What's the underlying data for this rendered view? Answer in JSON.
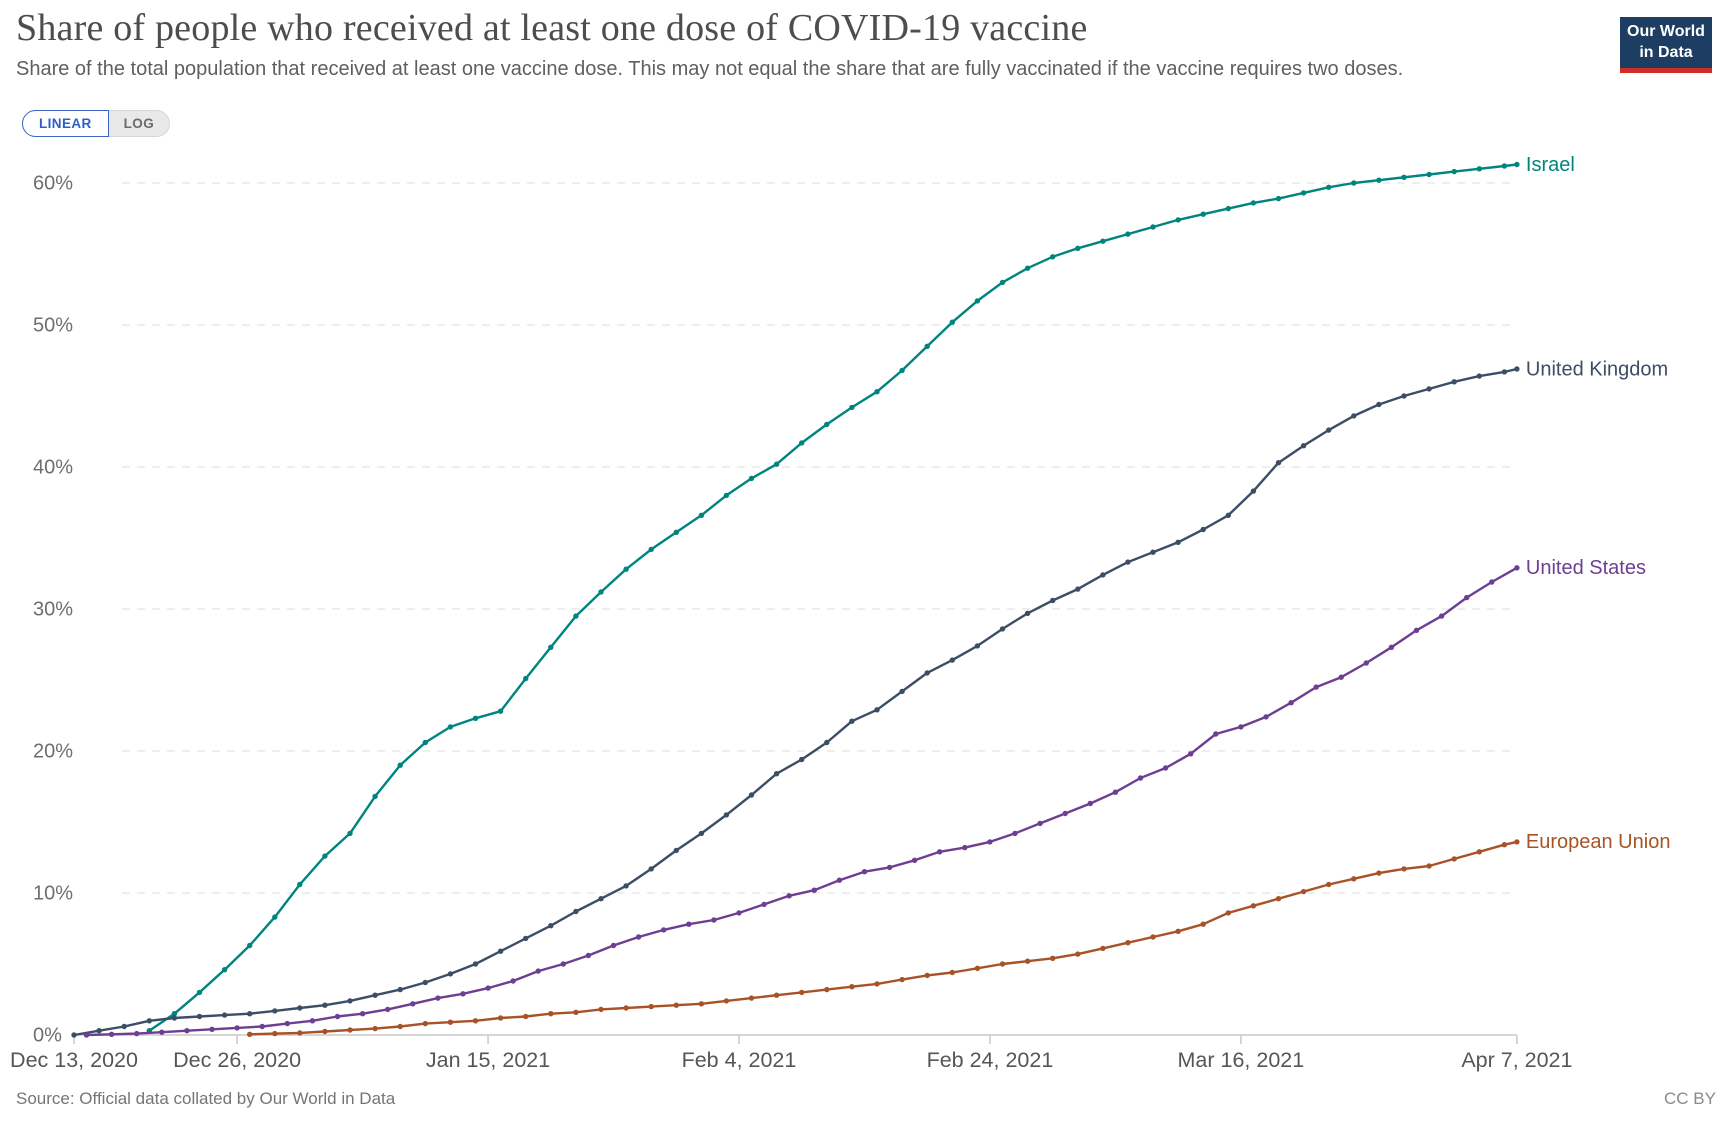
{
  "header": {
    "title": "Share of people who received at least one dose of COVID-19 vaccine",
    "subtitle": "Share of the total population that received at least one vaccine dose. This may not equal the share that are fully vaccinated if the vaccine requires two doses.",
    "logo": {
      "line1": "Our World",
      "line2": "in Data",
      "bg_color": "#1d3d63",
      "bar_color": "#ce2e27"
    }
  },
  "controls": {
    "linear_label": "LINEAR",
    "log_label": "LOG",
    "active": "LINEAR",
    "accent_color": "#2d5fc8"
  },
  "footer": {
    "source": "Source: Official data collated by Our World in Data",
    "license": "CC BY"
  },
  "chart_data": {
    "type": "line",
    "title": "Share of people who received at least one dose of COVID-19 vaccine",
    "xlabel": "",
    "ylabel": "",
    "x_unit": "days since Dec 13, 2020",
    "xlim": [
      0,
      115
    ],
    "ylim": [
      0,
      63
    ],
    "grid": "horizontal-dashed",
    "legend_position": "end-of-line-labels",
    "x_ticks": [
      {
        "label": "Dec 13, 2020",
        "day": 0
      },
      {
        "label": "Dec 26, 2020",
        "day": 13
      },
      {
        "label": "Jan 15, 2021",
        "day": 33
      },
      {
        "label": "Feb 4, 2021",
        "day": 53
      },
      {
        "label": "Feb 24, 2021",
        "day": 73
      },
      {
        "label": "Mar 16, 2021",
        "day": 93
      },
      {
        "label": "Apr 7, 2021",
        "day": 115
      }
    ],
    "y_ticks": [
      {
        "label": "0%",
        "value": 0
      },
      {
        "label": "10%",
        "value": 10
      },
      {
        "label": "20%",
        "value": 20
      },
      {
        "label": "30%",
        "value": 30
      },
      {
        "label": "40%",
        "value": 40
      },
      {
        "label": "50%",
        "value": 50
      },
      {
        "label": "60%",
        "value": 60
      }
    ],
    "series": [
      {
        "name": "Israel",
        "color": "#00847e",
        "points": [
          [
            6,
            0.3
          ],
          [
            8,
            1.5
          ],
          [
            10,
            3.0
          ],
          [
            12,
            4.6
          ],
          [
            14,
            6.3
          ],
          [
            16,
            8.3
          ],
          [
            18,
            10.6
          ],
          [
            20,
            12.6
          ],
          [
            22,
            14.2
          ],
          [
            24,
            16.8
          ],
          [
            26,
            19.0
          ],
          [
            28,
            20.6
          ],
          [
            30,
            21.7
          ],
          [
            32,
            22.3
          ],
          [
            34,
            22.8
          ],
          [
            36,
            25.1
          ],
          [
            38,
            27.3
          ],
          [
            40,
            29.5
          ],
          [
            42,
            31.2
          ],
          [
            44,
            32.8
          ],
          [
            46,
            34.2
          ],
          [
            48,
            35.4
          ],
          [
            50,
            36.6
          ],
          [
            52,
            38.0
          ],
          [
            54,
            39.2
          ],
          [
            56,
            40.2
          ],
          [
            58,
            41.7
          ],
          [
            60,
            43.0
          ],
          [
            62,
            44.2
          ],
          [
            64,
            45.3
          ],
          [
            66,
            46.8
          ],
          [
            68,
            48.5
          ],
          [
            70,
            50.2
          ],
          [
            72,
            51.7
          ],
          [
            74,
            53.0
          ],
          [
            76,
            54.0
          ],
          [
            78,
            54.8
          ],
          [
            80,
            55.4
          ],
          [
            82,
            55.9
          ],
          [
            84,
            56.4
          ],
          [
            86,
            56.9
          ],
          [
            88,
            57.4
          ],
          [
            90,
            57.8
          ],
          [
            92,
            58.2
          ],
          [
            94,
            58.6
          ],
          [
            96,
            58.9
          ],
          [
            98,
            59.3
          ],
          [
            100,
            59.7
          ],
          [
            102,
            60.0
          ],
          [
            104,
            60.2
          ],
          [
            106,
            60.4
          ],
          [
            108,
            60.6
          ],
          [
            110,
            60.8
          ],
          [
            112,
            61.0
          ],
          [
            114,
            61.2
          ],
          [
            115,
            61.3
          ]
        ]
      },
      {
        "name": "United Kingdom",
        "color": "#3c4e66",
        "points": [
          [
            0,
            0.0
          ],
          [
            2,
            0.3
          ],
          [
            4,
            0.6
          ],
          [
            6,
            1.0
          ],
          [
            8,
            1.2
          ],
          [
            10,
            1.3
          ],
          [
            12,
            1.4
          ],
          [
            14,
            1.5
          ],
          [
            16,
            1.7
          ],
          [
            18,
            1.9
          ],
          [
            20,
            2.1
          ],
          [
            22,
            2.4
          ],
          [
            24,
            2.8
          ],
          [
            26,
            3.2
          ],
          [
            28,
            3.7
          ],
          [
            30,
            4.3
          ],
          [
            32,
            5.0
          ],
          [
            34,
            5.9
          ],
          [
            36,
            6.8
          ],
          [
            38,
            7.7
          ],
          [
            40,
            8.7
          ],
          [
            42,
            9.6
          ],
          [
            44,
            10.5
          ],
          [
            46,
            11.7
          ],
          [
            48,
            13.0
          ],
          [
            50,
            14.2
          ],
          [
            52,
            15.5
          ],
          [
            54,
            16.9
          ],
          [
            56,
            18.4
          ],
          [
            58,
            19.4
          ],
          [
            60,
            20.6
          ],
          [
            62,
            22.1
          ],
          [
            64,
            22.9
          ],
          [
            66,
            24.2
          ],
          [
            68,
            25.5
          ],
          [
            70,
            26.4
          ],
          [
            72,
            27.4
          ],
          [
            74,
            28.6
          ],
          [
            76,
            29.7
          ],
          [
            78,
            30.6
          ],
          [
            80,
            31.4
          ],
          [
            82,
            32.4
          ],
          [
            84,
            33.3
          ],
          [
            86,
            34.0
          ],
          [
            88,
            34.7
          ],
          [
            90,
            35.6
          ],
          [
            92,
            36.6
          ],
          [
            94,
            38.3
          ],
          [
            96,
            40.3
          ],
          [
            98,
            41.5
          ],
          [
            100,
            42.6
          ],
          [
            102,
            43.6
          ],
          [
            104,
            44.4
          ],
          [
            106,
            45.0
          ],
          [
            108,
            45.5
          ],
          [
            110,
            46.0
          ],
          [
            112,
            46.4
          ],
          [
            114,
            46.7
          ],
          [
            115,
            46.9
          ]
        ]
      },
      {
        "name": "United States",
        "color": "#6d3e91",
        "points": [
          [
            1,
            0.0
          ],
          [
            3,
            0.05
          ],
          [
            5,
            0.1
          ],
          [
            7,
            0.2
          ],
          [
            9,
            0.3
          ],
          [
            11,
            0.4
          ],
          [
            13,
            0.5
          ],
          [
            15,
            0.6
          ],
          [
            17,
            0.8
          ],
          [
            19,
            1.0
          ],
          [
            21,
            1.3
          ],
          [
            23,
            1.5
          ],
          [
            25,
            1.8
          ],
          [
            27,
            2.2
          ],
          [
            29,
            2.6
          ],
          [
            31,
            2.9
          ],
          [
            33,
            3.3
          ],
          [
            35,
            3.8
          ],
          [
            37,
            4.5
          ],
          [
            39,
            5.0
          ],
          [
            41,
            5.6
          ],
          [
            43,
            6.3
          ],
          [
            45,
            6.9
          ],
          [
            47,
            7.4
          ],
          [
            49,
            7.8
          ],
          [
            51,
            8.1
          ],
          [
            53,
            8.6
          ],
          [
            55,
            9.2
          ],
          [
            57,
            9.8
          ],
          [
            59,
            10.2
          ],
          [
            61,
            10.9
          ],
          [
            63,
            11.5
          ],
          [
            65,
            11.8
          ],
          [
            67,
            12.3
          ],
          [
            69,
            12.9
          ],
          [
            71,
            13.2
          ],
          [
            73,
            13.6
          ],
          [
            75,
            14.2
          ],
          [
            77,
            14.9
          ],
          [
            79,
            15.6
          ],
          [
            81,
            16.3
          ],
          [
            83,
            17.1
          ],
          [
            85,
            18.1
          ],
          [
            87,
            18.8
          ],
          [
            89,
            19.8
          ],
          [
            91,
            21.2
          ],
          [
            93,
            21.7
          ],
          [
            95,
            22.4
          ],
          [
            97,
            23.4
          ],
          [
            99,
            24.5
          ],
          [
            101,
            25.2
          ],
          [
            103,
            26.2
          ],
          [
            105,
            27.3
          ],
          [
            107,
            28.5
          ],
          [
            109,
            29.5
          ],
          [
            111,
            30.8
          ],
          [
            113,
            31.9
          ],
          [
            115,
            32.9
          ]
        ]
      },
      {
        "name": "European Union",
        "color": "#a75327",
        "points": [
          [
            14,
            0.05
          ],
          [
            16,
            0.1
          ],
          [
            18,
            0.15
          ],
          [
            20,
            0.25
          ],
          [
            22,
            0.35
          ],
          [
            24,
            0.45
          ],
          [
            26,
            0.6
          ],
          [
            28,
            0.8
          ],
          [
            30,
            0.9
          ],
          [
            32,
            1.0
          ],
          [
            34,
            1.2
          ],
          [
            36,
            1.3
          ],
          [
            38,
            1.5
          ],
          [
            40,
            1.6
          ],
          [
            42,
            1.8
          ],
          [
            44,
            1.9
          ],
          [
            46,
            2.0
          ],
          [
            48,
            2.1
          ],
          [
            50,
            2.2
          ],
          [
            52,
            2.4
          ],
          [
            54,
            2.6
          ],
          [
            56,
            2.8
          ],
          [
            58,
            3.0
          ],
          [
            60,
            3.2
          ],
          [
            62,
            3.4
          ],
          [
            64,
            3.6
          ],
          [
            66,
            3.9
          ],
          [
            68,
            4.2
          ],
          [
            70,
            4.4
          ],
          [
            72,
            4.7
          ],
          [
            74,
            5.0
          ],
          [
            76,
            5.2
          ],
          [
            78,
            5.4
          ],
          [
            80,
            5.7
          ],
          [
            82,
            6.1
          ],
          [
            84,
            6.5
          ],
          [
            86,
            6.9
          ],
          [
            88,
            7.3
          ],
          [
            90,
            7.8
          ],
          [
            92,
            8.6
          ],
          [
            94,
            9.1
          ],
          [
            96,
            9.6
          ],
          [
            98,
            10.1
          ],
          [
            100,
            10.6
          ],
          [
            102,
            11.0
          ],
          [
            104,
            11.4
          ],
          [
            106,
            11.7
          ],
          [
            108,
            11.9
          ],
          [
            110,
            12.4
          ],
          [
            112,
            12.9
          ],
          [
            114,
            13.4
          ],
          [
            115,
            13.6
          ]
        ]
      }
    ]
  }
}
